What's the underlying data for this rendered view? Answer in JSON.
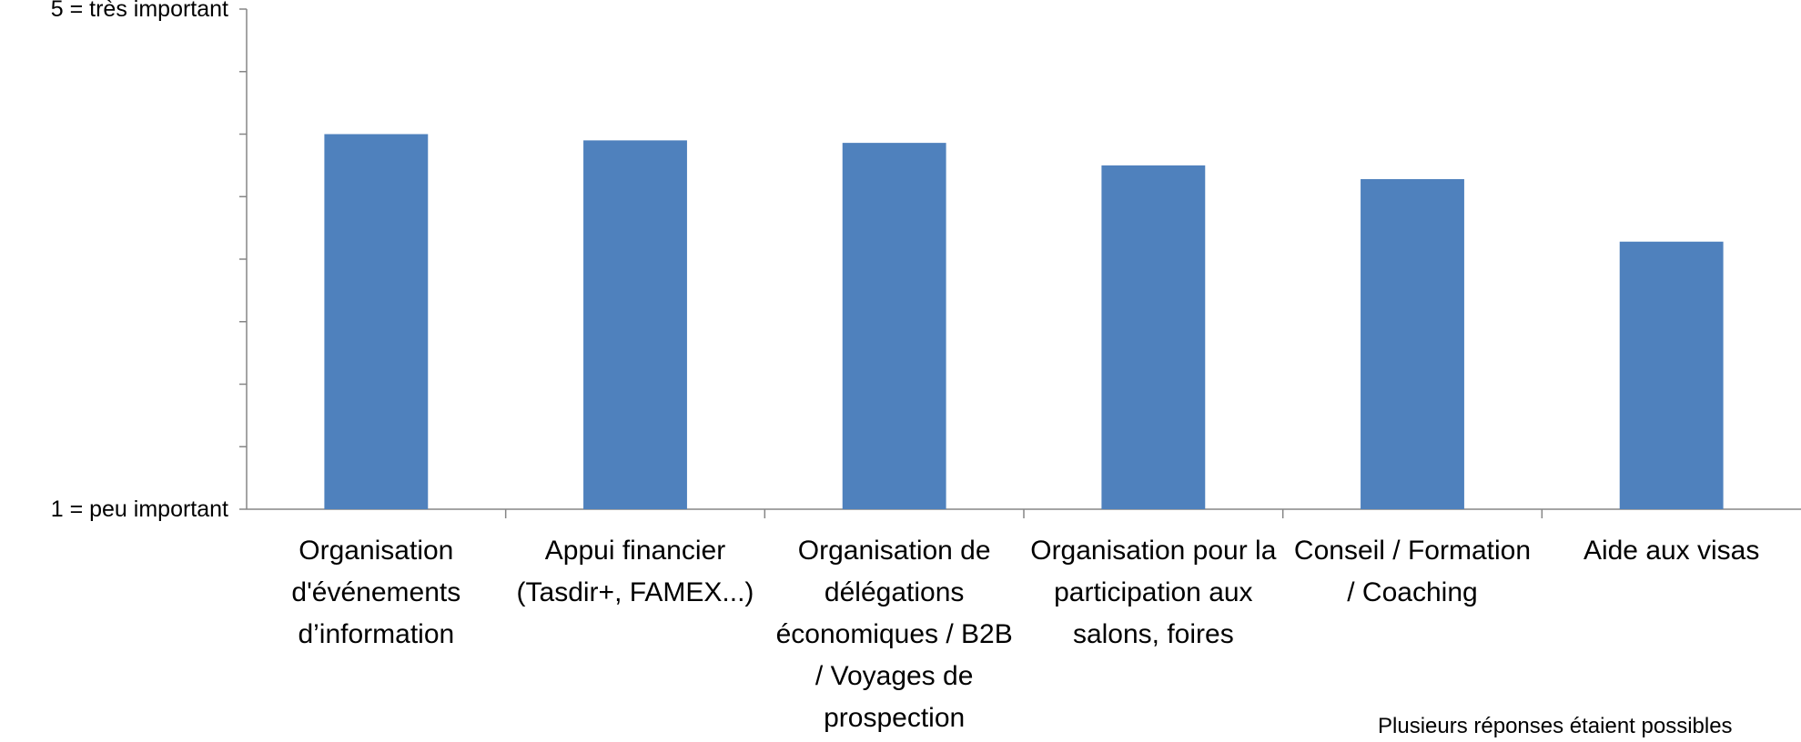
{
  "chart_data": {
    "type": "bar",
    "categories": [
      "Organisation d'événements d’information",
      "Appui financier (Tasdir+, FAMEX...)",
      "Organisation de délégations économiques / B2B / Voyages de prospection",
      "Organisation pour la participation aux salons, foires",
      "Conseil / Formation / Coaching",
      "Aide aux visas"
    ],
    "values": [
      4.0,
      3.95,
      3.93,
      3.75,
      3.64,
      3.14
    ],
    "color": "#4f81bd",
    "ylim": [
      1,
      5
    ],
    "yticks": [
      {
        "value": 1,
        "label": "1 = peu important"
      },
      {
        "value": 5,
        "label": "5 = très important"
      }
    ],
    "yminor_ticks": [
      1.5,
      2,
      2.5,
      3,
      3.5,
      4,
      4.5
    ],
    "annotation": "Plusieurs réponses étaient possibles"
  }
}
